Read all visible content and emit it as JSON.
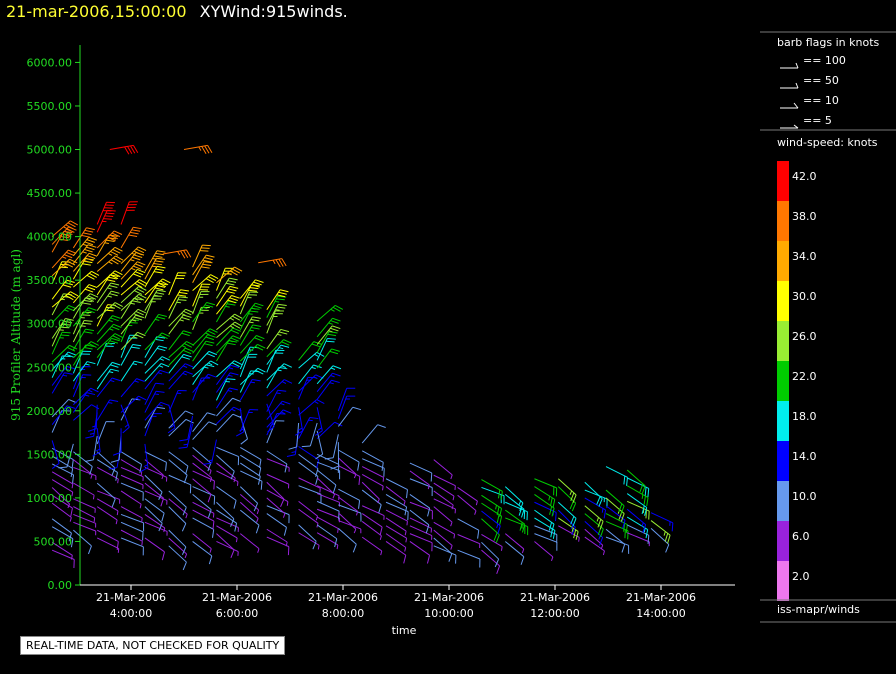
{
  "title": {
    "timestamp": "21-mar-2006,15:00:00",
    "name": "XYWind:915winds."
  },
  "chart_data": {
    "type": "wind-barb-profile",
    "ylabel": "915 Profiler Altitude (m agl)",
    "xlabel": "time",
    "ylim": [
      0,
      6200
    ],
    "yticks": [
      "0.00",
      "500.00",
      "1000.00",
      "1500.00",
      "2000.00",
      "2500.00",
      "3000.00",
      "3500.00",
      "4000.00",
      "4500.00",
      "5000.00",
      "5500.00",
      "6000.00"
    ],
    "ytick_values": [
      0,
      500,
      1000,
      1500,
      2000,
      2500,
      3000,
      3500,
      4000,
      4500,
      5000,
      5500,
      6000
    ],
    "xlim_hours": [
      2.5,
      15.0
    ],
    "xticks": [
      {
        "hour": 4,
        "date": "21-Mar-2006",
        "time": "4:00:00"
      },
      {
        "hour": 6,
        "date": "21-Mar-2006",
        "time": "6:00:00"
      },
      {
        "hour": 8,
        "date": "21-Mar-2006",
        "time": "8:00:00"
      },
      {
        "hour": 10,
        "date": "21-Mar-2006",
        "time": "10:00:00"
      },
      {
        "hour": 12,
        "date": "21-Mar-2006",
        "time": "12:00:00"
      },
      {
        "hour": 14,
        "date": "21-Mar-2006",
        "time": "14:00:00"
      }
    ],
    "profile_times_hours": [
      2.55,
      2.95,
      3.4,
      3.85,
      4.3,
      4.75,
      5.2,
      5.65,
      6.1,
      6.6,
      7.2,
      7.55,
      7.95,
      8.4,
      8.85,
      9.3,
      9.75,
      10.2,
      10.65,
      11.1,
      11.65,
      12.1,
      12.6,
      13.0,
      13.4,
      13.85
    ],
    "profile_top_m": [
      4000,
      3900,
      4200,
      4300,
      3600,
      3400,
      3700,
      3500,
      3300,
      3200,
      2600,
      3100,
      2000,
      1700,
      1300,
      1400,
      1500,
      1200,
      1250,
      1200,
      1300,
      1300,
      1350,
      1400,
      1350,
      850
    ],
    "profile_bottom_m": [
      400,
      450,
      450,
      450,
      450,
      450,
      500,
      500,
      500,
      550,
      600,
      600,
      650,
      550,
      500,
      500,
      450,
      400,
      400,
      500,
      500,
      500,
      550,
      550,
      600,
      650
    ],
    "upper_layer": [
      {
        "hour": 3.6,
        "alt_m": 5000,
        "speed": 40
      },
      {
        "hour": 5.0,
        "alt_m": 5000,
        "speed": 36
      },
      {
        "hour": 4.6,
        "alt_m": 3800,
        "speed": 36
      },
      {
        "hour": 6.4,
        "alt_m": 3700,
        "speed": 36
      }
    ]
  },
  "legend": {
    "barb_title": "barb flags in knots",
    "barb_labels": [
      "== 100",
      "== 50",
      "== 10",
      "== 5"
    ],
    "speed_title": "wind-speed: knots",
    "speed_bins": [
      {
        "label": "42.0",
        "color": "#ff0000"
      },
      {
        "label": "38.0",
        "color": "#ff7700"
      },
      {
        "label": "34.0",
        "color": "#ffaa00"
      },
      {
        "label": "30.0",
        "color": "#ffff00"
      },
      {
        "label": "26.0",
        "color": "#99ee33"
      },
      {
        "label": "22.0",
        "color": "#00cc00"
      },
      {
        "label": "18.0",
        "color": "#00eeee"
      },
      {
        "label": "14.0",
        "color": "#0000ff"
      },
      {
        "label": "10.0",
        "color": "#6699ee"
      },
      {
        "label": "6.0",
        "color": "#9922dd"
      },
      {
        "label": "2.0",
        "color": "#ee77ee"
      }
    ],
    "source": "iss-mapr/winds"
  },
  "qc_note": "REAL-TIME DATA, NOT CHECKED FOR QUALITY",
  "colors": {
    "axis": "#22dd22",
    "background": "#000000",
    "title_timestamp": "#ffff33"
  }
}
